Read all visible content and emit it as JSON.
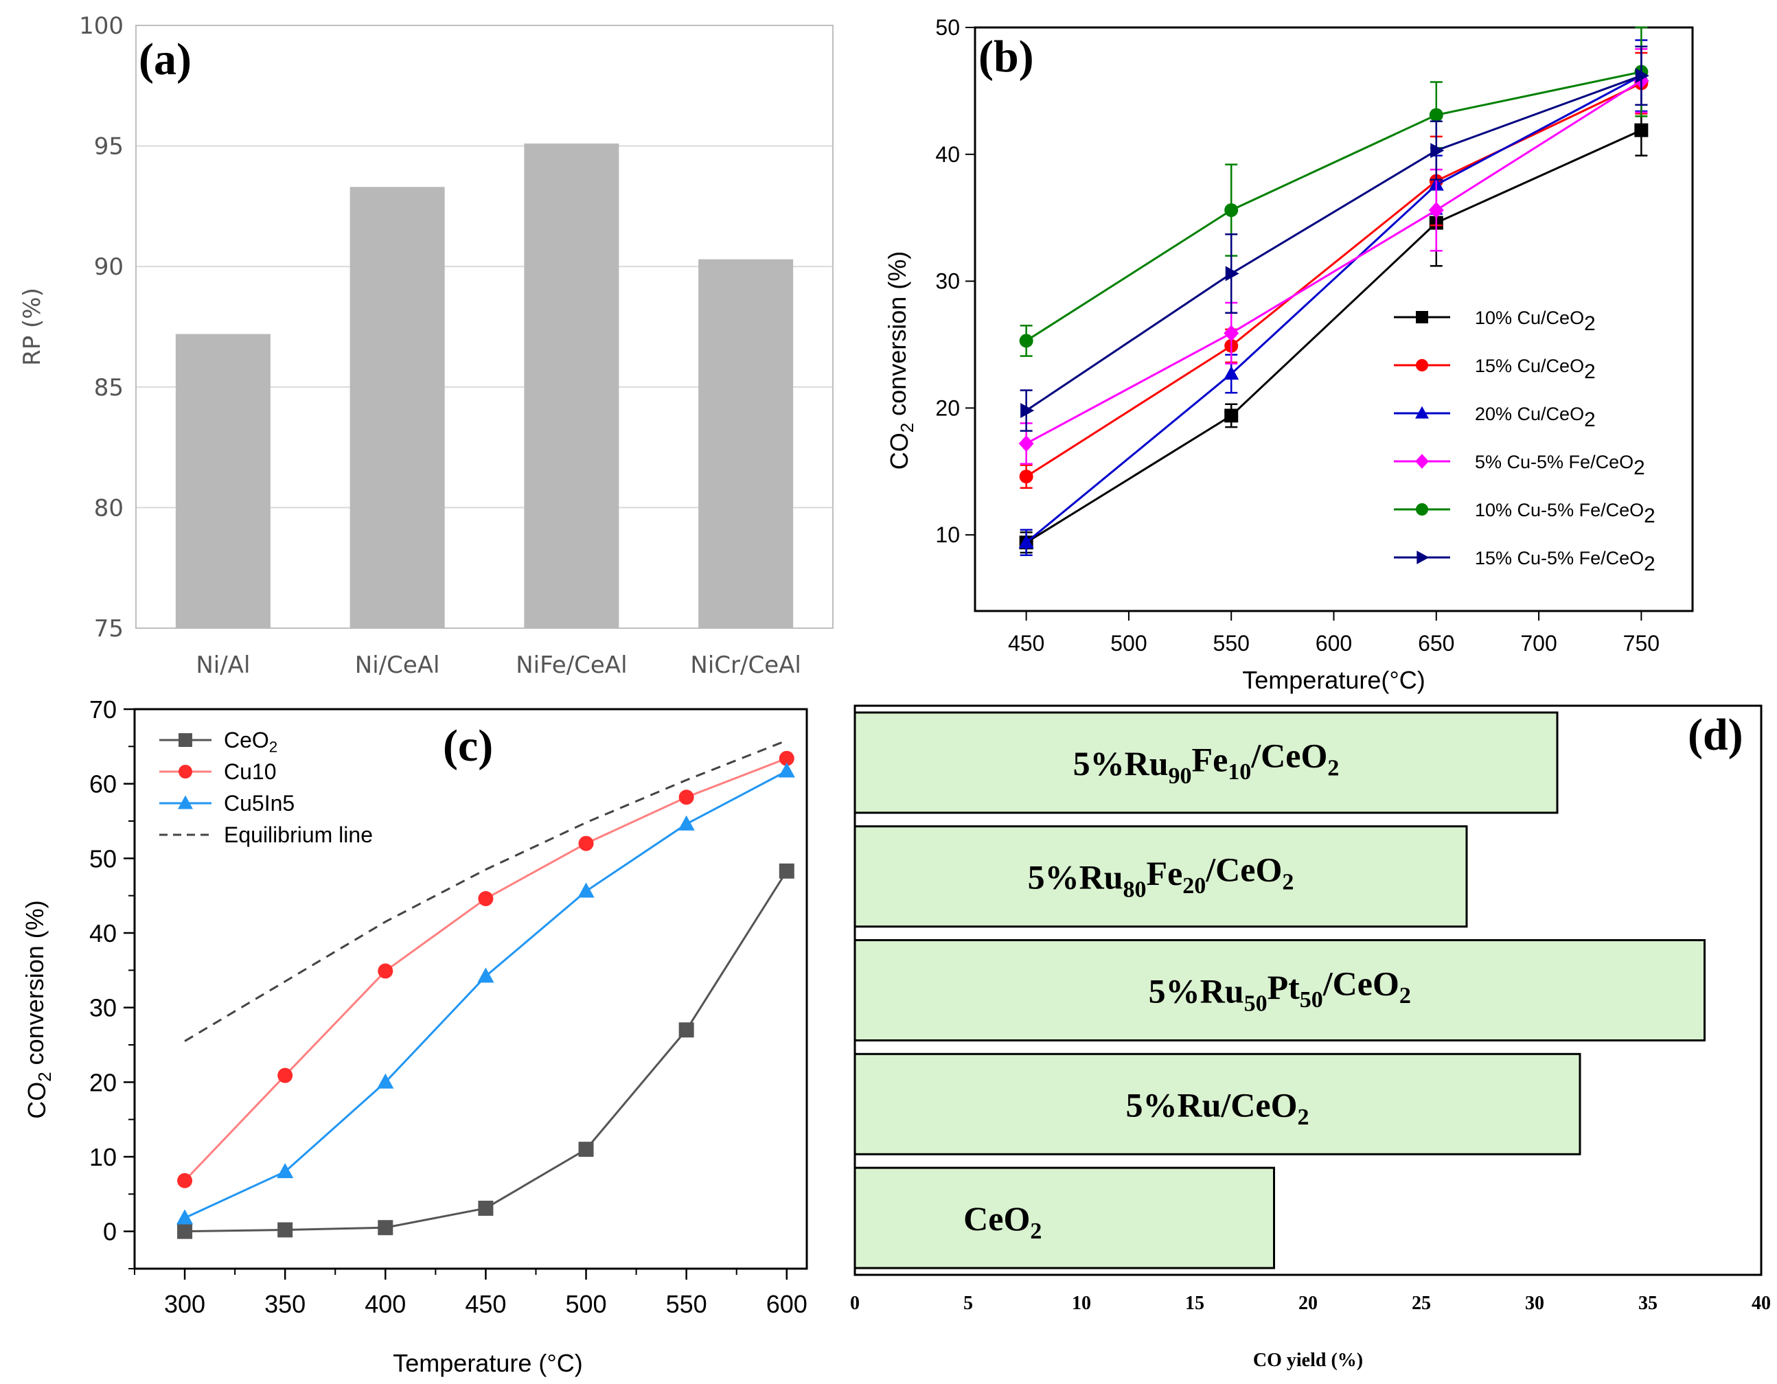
{
  "chart_data": [
    {
      "panel": "(a)",
      "type": "bar",
      "title": "",
      "xlabel": "",
      "ylabel": "RP (%)",
      "ylim": [
        75,
        100
      ],
      "yticks": [
        "75",
        "80",
        "85",
        "90",
        "95",
        "100"
      ],
      "categories": [
        "Ni/Al",
        "Ni/CeAl",
        "NiFe/CeAl",
        "NiCr/CeAl"
      ],
      "values": [
        87.2,
        93.3,
        95.1,
        90.3
      ],
      "grid": "horizontal",
      "color": "#b8b8b8"
    },
    {
      "panel": "(b)",
      "type": "line",
      "xlabel": "Temperature(°C)",
      "ylabel": "CO2 conversion (%)",
      "xlim": [
        425,
        775
      ],
      "ylim": [
        4,
        50
      ],
      "xticks": [
        "450",
        "500",
        "550",
        "600",
        "650",
        "700",
        "750"
      ],
      "yticks": [
        "10",
        "20",
        "30",
        "40",
        "50"
      ],
      "x": [
        450,
        550,
        650,
        750
      ],
      "legend_position": "lower-right",
      "series": [
        {
          "name": "10% Cu/CeO2",
          "label_main": "10% Cu/CeO",
          "label_sub": "2",
          "color": "#000000",
          "marker": "square",
          "values": [
            9.4,
            19.4,
            34.6,
            41.9
          ],
          "errors": [
            0.8,
            0.9,
            3.4,
            2.0
          ]
        },
        {
          "name": "15% Cu/CeO2",
          "label_main": "15% Cu/CeO",
          "label_sub": "2",
          "color": "#ff0000",
          "marker": "circle",
          "values": [
            14.6,
            24.9,
            37.9,
            45.6
          ],
          "errors": [
            0.9,
            1.3,
            3.5,
            2.4
          ]
        },
        {
          "name": "20% Cu/CeO2",
          "label_main": "20% Cu/CeO",
          "label_sub": "2",
          "color": "#0000cc",
          "marker": "triangle",
          "values": [
            9.4,
            22.7,
            37.6,
            46.2
          ],
          "errors": [
            1.0,
            1.5,
            2.3,
            2.8
          ]
        },
        {
          "name": "5% Cu-5% Fe/CeO2",
          "label_main": "5% Cu-5% Fe/CeO",
          "label_sub": "2",
          "color": "#ff00ff",
          "marker": "diamond",
          "values": [
            17.2,
            25.9,
            35.6,
            45.8
          ],
          "errors": [
            1.6,
            2.4,
            3.2,
            2.5
          ]
        },
        {
          "name": "10% Cu-5% Fe/CeO2",
          "label_main": "10% Cu-5% Fe/CeO",
          "label_sub": "2",
          "color": "#008000",
          "marker": "circle",
          "values": [
            25.3,
            35.6,
            43.1,
            46.5
          ],
          "errors": [
            1.2,
            3.6,
            2.6,
            3.5
          ]
        },
        {
          "name": "15% Cu-5% Fe/CeO2",
          "label_main": "15% Cu-5% Fe/CeO",
          "label_sub": "2",
          "color": "#000080",
          "marker": "triangle-right",
          "values": [
            19.8,
            30.6,
            40.3,
            46.2
          ],
          "errors": [
            1.6,
            3.1,
            2.3,
            2.3
          ]
        }
      ]
    },
    {
      "panel": "(c)",
      "type": "line",
      "xlabel": "Temperature (°C)",
      "ylabel": "CO2 conversion (%)",
      "xlim": [
        275,
        610
      ],
      "ylim": [
        -5,
        70
      ],
      "xticks": [
        "300",
        "350",
        "400",
        "450",
        "500",
        "550",
        "600"
      ],
      "yticks": [
        "0",
        "10",
        "20",
        "30",
        "40",
        "50",
        "60",
        "70"
      ],
      "x": [
        300,
        350,
        400,
        450,
        500,
        550,
        600
      ],
      "legend_position": "top-left",
      "series": [
        {
          "name": "CeO2",
          "label_main": "CeO",
          "label_sub": "2",
          "color": "#555555",
          "marker_color": "#555555",
          "marker": "square",
          "values": [
            0.0,
            0.2,
            0.5,
            3.1,
            11.0,
            27.0,
            48.3
          ]
        },
        {
          "name": "Cu10",
          "label_main": "Cu10",
          "label_sub": "",
          "color": "#ff8080",
          "marker_color": "#ff2b2b",
          "marker": "circle",
          "values": [
            6.8,
            20.9,
            34.9,
            44.6,
            52.0,
            58.2,
            63.4
          ]
        },
        {
          "name": "Cu5In5",
          "label_main": "Cu5In5",
          "label_sub": "",
          "color": "#2196f3",
          "marker_color": "#2196f3",
          "marker": "triangle",
          "values": [
            1.8,
            8.0,
            20.0,
            34.2,
            45.6,
            54.6,
            61.7
          ]
        },
        {
          "name": "Equilibrium line",
          "label_main": "Equilibrium line",
          "label_sub": "",
          "color": "#444444",
          "marker_color": "#444444",
          "marker": "none",
          "dashed": true,
          "values": [
            25.5,
            33.5,
            41.5,
            48.5,
            54.8,
            60.5,
            65.8
          ]
        }
      ]
    },
    {
      "panel": "(d)",
      "type": "bar",
      "orientation": "horizontal",
      "xlabel": "CO yield (%)",
      "ylabel": "",
      "xlim": [
        0,
        40
      ],
      "xticks": [
        "0",
        "5",
        "10",
        "15",
        "20",
        "25",
        "30",
        "35",
        "40"
      ],
      "color": "#d9f2d0",
      "categories": [
        "5%Ru90Fe10/CeO2",
        "5%Ru80Fe20/CeO2",
        "5%Ru50Pt50/CeO2",
        "5%Ru/CeO2",
        "CeO2"
      ],
      "category_labels": [
        [
          {
            "t": "5%Ru",
            "sub": false
          },
          {
            "t": "90",
            "sub": true
          },
          {
            "t": "Fe",
            "sub": false
          },
          {
            "t": "10",
            "sub": true
          },
          {
            "t": "/CeO",
            "sub": false
          },
          {
            "t": "2",
            "sub": true
          }
        ],
        [
          {
            "t": "5%Ru",
            "sub": false
          },
          {
            "t": "80",
            "sub": true
          },
          {
            "t": "Fe",
            "sub": false
          },
          {
            "t": "20",
            "sub": true
          },
          {
            "t": "/CeO",
            "sub": false
          },
          {
            "t": "2",
            "sub": true
          }
        ],
        [
          {
            "t": "5%Ru",
            "sub": false
          },
          {
            "t": "50",
            "sub": true
          },
          {
            "t": "Pt",
            "sub": false
          },
          {
            "t": "50",
            "sub": true
          },
          {
            "t": "/CeO",
            "sub": false
          },
          {
            "t": "2",
            "sub": true
          }
        ],
        [
          {
            "t": "5%Ru/CeO",
            "sub": false
          },
          {
            "t": "2",
            "sub": true
          }
        ],
        [
          {
            "t": "CeO",
            "sub": false
          },
          {
            "t": "2",
            "sub": true
          }
        ]
      ],
      "values": [
        31.0,
        27.0,
        37.5,
        32.0,
        18.5
      ]
    }
  ]
}
